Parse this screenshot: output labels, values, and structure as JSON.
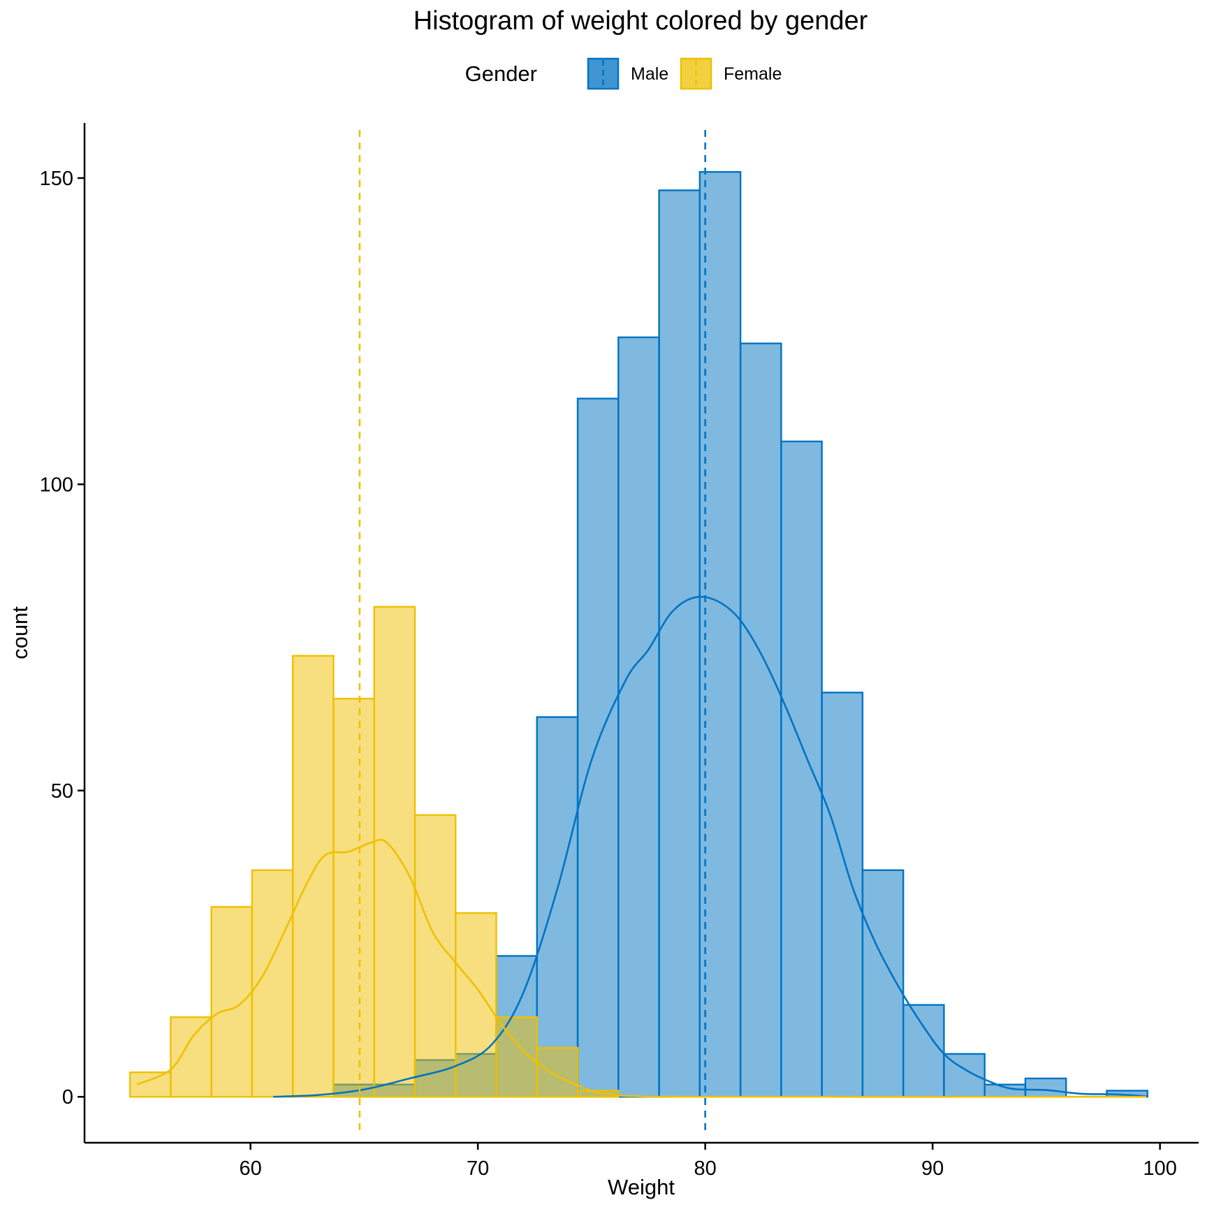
{
  "chart_data": {
    "type": "histogram",
    "title": "Histogram of weight colored by gender",
    "xlabel": "Weight",
    "ylabel": "count",
    "xlim": [
      52.7,
      101.7
    ],
    "ylim": [
      -7.5,
      159
    ],
    "x_ticks": [
      60,
      70,
      80,
      90,
      100
    ],
    "y_ticks": [
      0,
      50,
      100,
      150
    ],
    "bin_width": 1.79,
    "grid": false,
    "legend": {
      "title": "Gender",
      "position": "top",
      "entries": [
        "Male",
        "Female"
      ]
    },
    "series": [
      {
        "name": "Male",
        "color": "#0073C2",
        "fill": "#0073C2",
        "mean": 80,
        "bins": [
          {
            "x0": 63.65,
            "x1": 65.44,
            "count": 2
          },
          {
            "x0": 65.44,
            "x1": 67.23,
            "count": 2
          },
          {
            "x0": 67.23,
            "x1": 69.02,
            "count": 6
          },
          {
            "x0": 69.02,
            "x1": 70.81,
            "count": 7
          },
          {
            "x0": 70.81,
            "x1": 72.6,
            "count": 23
          },
          {
            "x0": 72.6,
            "x1": 74.39,
            "count": 62
          },
          {
            "x0": 74.39,
            "x1": 76.18,
            "count": 114
          },
          {
            "x0": 76.18,
            "x1": 77.97,
            "count": 124
          },
          {
            "x0": 77.97,
            "x1": 79.76,
            "count": 148
          },
          {
            "x0": 79.76,
            "x1": 81.55,
            "count": 151
          },
          {
            "x0": 81.55,
            "x1": 83.34,
            "count": 123
          },
          {
            "x0": 83.34,
            "x1": 85.13,
            "count": 107
          },
          {
            "x0": 85.13,
            "x1": 86.92,
            "count": 66
          },
          {
            "x0": 86.92,
            "x1": 88.71,
            "count": 37
          },
          {
            "x0": 88.71,
            "x1": 90.5,
            "count": 15
          },
          {
            "x0": 90.5,
            "x1": 92.29,
            "count": 7
          },
          {
            "x0": 92.29,
            "x1": 94.08,
            "count": 2
          },
          {
            "x0": 94.08,
            "x1": 95.87,
            "count": 3
          },
          {
            "x0": 95.87,
            "x1": 97.66,
            "count": 0
          },
          {
            "x0": 97.66,
            "x1": 99.45,
            "count": 1
          }
        ],
        "density": [
          [
            61,
            0
          ],
          [
            63,
            0.3
          ],
          [
            65,
            1.2
          ],
          [
            67,
            3
          ],
          [
            69,
            5
          ],
          [
            70.6,
            8.5
          ],
          [
            72,
            17
          ],
          [
            73.5,
            34
          ],
          [
            75,
            55
          ],
          [
            76.5,
            68
          ],
          [
            77.5,
            73
          ],
          [
            78.5,
            79
          ],
          [
            79.5,
            81.5
          ],
          [
            80.5,
            81
          ],
          [
            81.5,
            78
          ],
          [
            82.5,
            72
          ],
          [
            83.5,
            64
          ],
          [
            84.5,
            55
          ],
          [
            85.5,
            46
          ],
          [
            86.5,
            34
          ],
          [
            87.5,
            25
          ],
          [
            88.5,
            18
          ],
          [
            89.5,
            12
          ],
          [
            90.5,
            7
          ],
          [
            91.5,
            4.3
          ],
          [
            92.5,
            2.5
          ],
          [
            93.5,
            1.3
          ],
          [
            95,
            1.1
          ],
          [
            96.5,
            0.5
          ],
          [
            98,
            0.4
          ],
          [
            99.4,
            0.1
          ]
        ]
      },
      {
        "name": "Female",
        "color": "#EFC000",
        "fill": "#EFC000",
        "mean": 64.8,
        "bins": [
          {
            "x0": 54.7,
            "x1": 56.49,
            "count": 4
          },
          {
            "x0": 56.49,
            "x1": 58.28,
            "count": 13
          },
          {
            "x0": 58.28,
            "x1": 60.07,
            "count": 31
          },
          {
            "x0": 60.07,
            "x1": 61.86,
            "count": 37
          },
          {
            "x0": 61.86,
            "x1": 63.65,
            "count": 72
          },
          {
            "x0": 63.65,
            "x1": 65.44,
            "count": 65
          },
          {
            "x0": 65.44,
            "x1": 67.23,
            "count": 80
          },
          {
            "x0": 67.23,
            "x1": 69.02,
            "count": 46
          },
          {
            "x0": 69.02,
            "x1": 70.81,
            "count": 30
          },
          {
            "x0": 70.81,
            "x1": 72.6,
            "count": 13
          },
          {
            "x0": 72.6,
            "x1": 74.39,
            "count": 8
          },
          {
            "x0": 74.39,
            "x1": 76.18,
            "count": 1
          }
        ],
        "density": [
          [
            55,
            2
          ],
          [
            56.5,
            4.5
          ],
          [
            57.5,
            10
          ],
          [
            58.5,
            13.5
          ],
          [
            59.5,
            15
          ],
          [
            60.5,
            19.5
          ],
          [
            61.5,
            27
          ],
          [
            62.5,
            35
          ],
          [
            63.3,
            39.5
          ],
          [
            64.3,
            40
          ],
          [
            65.3,
            41.5
          ],
          [
            66,
            41.5
          ],
          [
            67,
            36
          ],
          [
            68,
            27
          ],
          [
            69,
            22
          ],
          [
            70,
            17.5
          ],
          [
            71,
            12
          ],
          [
            72,
            7.5
          ],
          [
            73,
            4.5
          ],
          [
            74,
            2.5
          ],
          [
            75,
            1
          ],
          [
            76,
            0.3
          ],
          [
            77,
            0.1
          ],
          [
            80,
            0
          ],
          [
            99.4,
            0
          ]
        ]
      }
    ]
  }
}
